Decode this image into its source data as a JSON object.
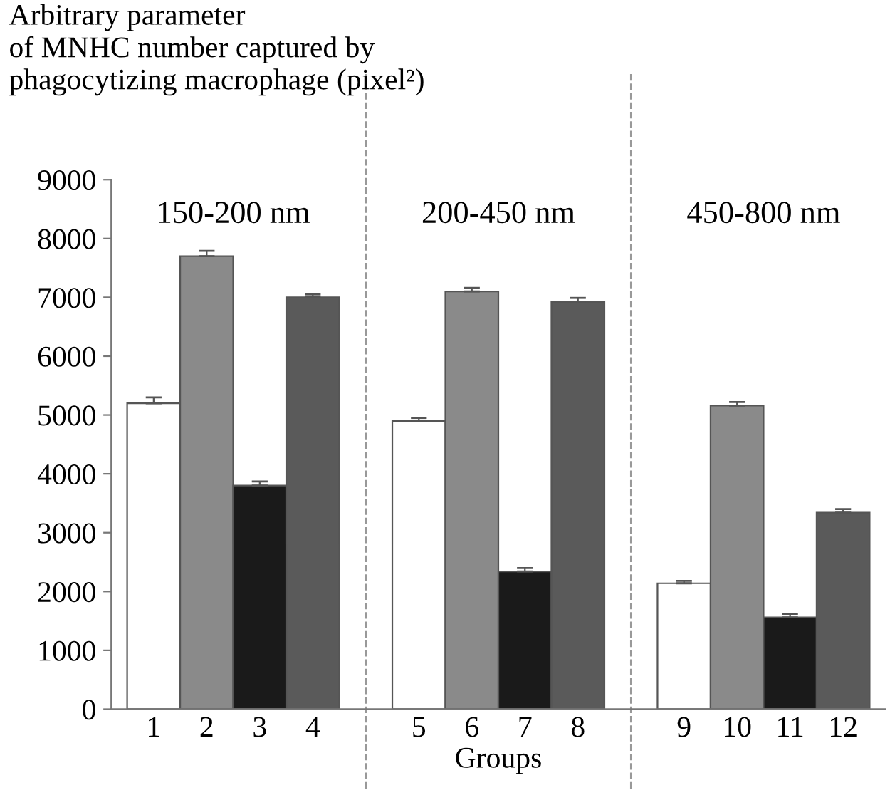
{
  "chart_data": {
    "type": "bar",
    "ylabel": "Arbitrary parameter\nof MNHC number captured by\nphagocytizing macrophage (pixel²)",
    "xlabel": "Groups",
    "categories": [
      "1",
      "2",
      "3",
      "4",
      null,
      "5",
      "6",
      "7",
      "8",
      null,
      "9",
      "10",
      "11",
      "12"
    ],
    "values": [
      5200,
      7700,
      3800,
      7000,
      null,
      4900,
      7100,
      2340,
      6920,
      null,
      2140,
      5160,
      1560,
      3340
    ],
    "errors": [
      [
        5200,
        5300
      ],
      [
        7700,
        7790
      ],
      [
        3800,
        3870
      ],
      [
        7000,
        7050
      ],
      null,
      [
        4900,
        4950
      ],
      [
        7100,
        7160
      ],
      [
        2340,
        2400
      ],
      [
        6920,
        6990
      ],
      null,
      [
        2140,
        2180
      ],
      [
        5160,
        5220
      ],
      [
        1560,
        1610
      ],
      [
        3340,
        3400
      ]
    ],
    "colors": [
      "#ffffff",
      "#8a8a8a",
      "#1a1a1a",
      "#5a5a5a",
      null,
      "#ffffff",
      "#8a8a8a",
      "#1a1a1a",
      "#5a5a5a",
      null,
      "#ffffff",
      "#8a8a8a",
      "#1a1a1a",
      "#5a5a5a"
    ],
    "ylim": [
      0,
      9000
    ],
    "yticks": [
      0,
      1000,
      2000,
      3000,
      4000,
      5000,
      6000,
      7000,
      8000,
      9000
    ],
    "annotations": [
      "150-200 nm",
      "200-450 nm",
      "450-800 nm"
    ],
    "legend": false
  }
}
